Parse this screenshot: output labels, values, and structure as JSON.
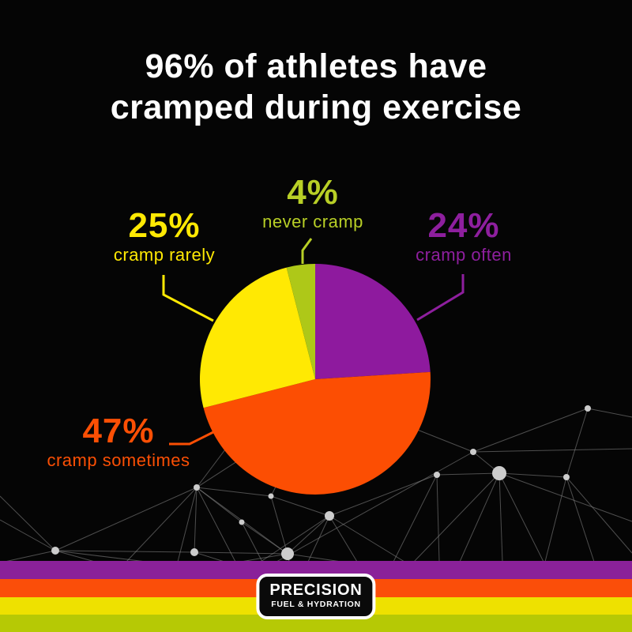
{
  "title": {
    "line1": "96% of athletes have",
    "line2": "cramped during exercise"
  },
  "chart_data": {
    "type": "pie",
    "title": "96% of athletes have cramped during exercise",
    "start_angle_deg": 0,
    "direction": "clockwise-from-12-oclock",
    "slices": [
      {
        "label": "cramp often",
        "value": 24,
        "color": "#8e1a9e"
      },
      {
        "label": "cramp sometimes",
        "value": 47,
        "color": "#fc4e03"
      },
      {
        "label": "cramp rarely",
        "value": 25,
        "color": "#ffe903"
      },
      {
        "label": "never cramp",
        "value": 4,
        "color": "#aec818"
      }
    ],
    "legend_position": "callout-labels-around-pie"
  },
  "callouts": [
    {
      "pct": "4%",
      "label": "never cramp",
      "color": "#b8cf26"
    },
    {
      "pct": "25%",
      "label": "cramp rarely",
      "color": "#ffe903"
    },
    {
      "pct": "24%",
      "label": "cramp often",
      "color": "#8e1f9e"
    },
    {
      "pct": "47%",
      "label": "cramp sometimes",
      "color": "#fb4f04"
    }
  ],
  "footer": {
    "logo_line1": "PRECISION",
    "logo_line2": "FUEL & HYDRATION",
    "stripes": [
      "#8a2199",
      "#fb4e09",
      "#eee100",
      "#b6c905"
    ]
  }
}
